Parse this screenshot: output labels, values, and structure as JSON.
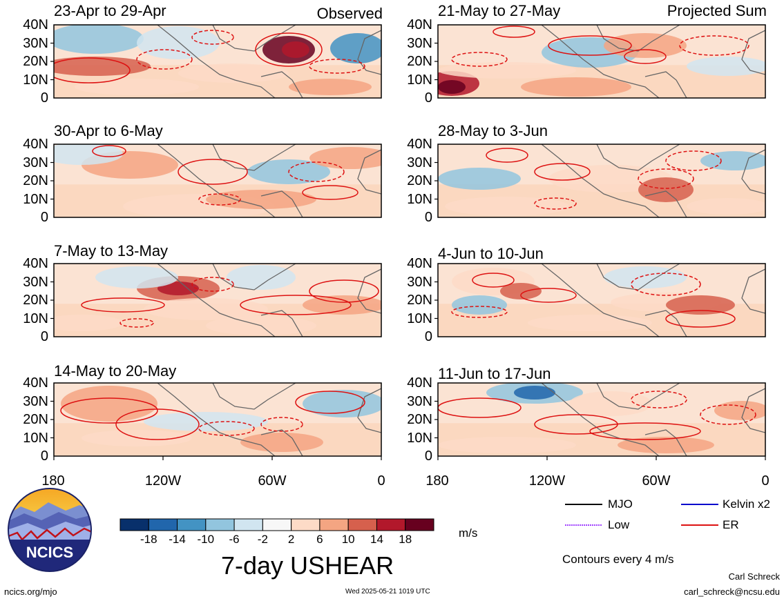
{
  "panels": {
    "observed": [
      {
        "title": "23-Apr to 29-Apr",
        "header": "Observed"
      },
      {
        "title": "30-Apr to 6-May"
      },
      {
        "title": "7-May to 13-May"
      },
      {
        "title": "14-May to 20-May"
      }
    ],
    "projected": [
      {
        "title": "21-May to 27-May",
        "header": "Projected Sum"
      },
      {
        "title": "28-May to 3-Jun"
      },
      {
        "title": "4-Jun to 10-Jun"
      },
      {
        "title": "11-Jun to 17-Jun"
      }
    ]
  },
  "axes": {
    "lat_labels": [
      "40N",
      "30N",
      "20N",
      "10N",
      "0"
    ],
    "lon_labels": [
      "180",
      "120W",
      "60W",
      "0"
    ]
  },
  "colorbar": {
    "ticks": [
      "-18",
      "-14",
      "-10",
      "-6",
      "-2",
      "2",
      "6",
      "10",
      "14",
      "18"
    ],
    "colors": [
      "#08306b",
      "#2166ac",
      "#4393c3",
      "#92c5de",
      "#d1e5f0",
      "#f7f7f7",
      "#fddbc7",
      "#f4a582",
      "#d6604d",
      "#b2182b",
      "#67001f"
    ],
    "unit": "m/s",
    "title": "7-day USHEAR"
  },
  "legend": {
    "items": [
      {
        "label": "MJO",
        "color": "#000000"
      },
      {
        "label": "Kelvin x2",
        "color": "#0000cc"
      },
      {
        "label": "Low",
        "color": "#a040ff"
      },
      {
        "label": "ER",
        "color": "#dd1111"
      }
    ],
    "contour_note": "Contours every 4 m/s"
  },
  "logo": {
    "text": "NCICS"
  },
  "footer": {
    "url": "ncics.org/mjo",
    "timestamp": "Wed 2025-05-21 1019 UTC",
    "author": "Carl Schreck",
    "email": "carl_schreck@ncsu.edu"
  }
}
